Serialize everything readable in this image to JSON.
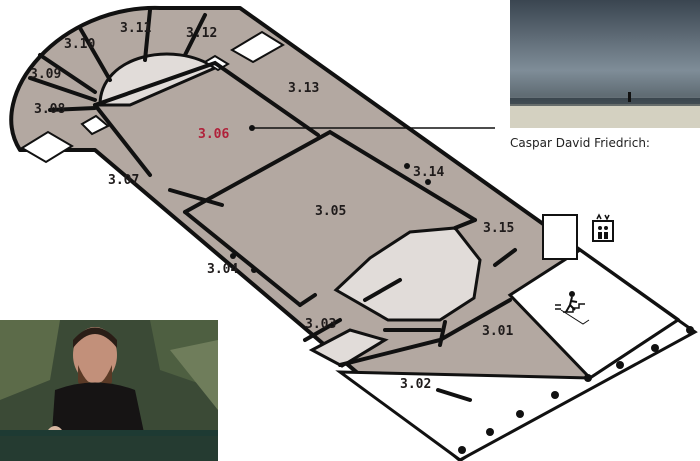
{
  "map": {
    "rooms": [
      {
        "id": "3.01",
        "label": "3.01"
      },
      {
        "id": "3.02",
        "label": "3.02"
      },
      {
        "id": "3.03",
        "label": "3.03"
      },
      {
        "id": "3.04",
        "label": "3.04"
      },
      {
        "id": "3.05",
        "label": "3.05"
      },
      {
        "id": "3.06",
        "label": "3.06",
        "highlighted": true
      },
      {
        "id": "3.07",
        "label": "3.07"
      },
      {
        "id": "3.08",
        "label": "3.08"
      },
      {
        "id": "3.09",
        "label": "3.09"
      },
      {
        "id": "3.10",
        "label": "3.10"
      },
      {
        "id": "3.11",
        "label": "3.11"
      },
      {
        "id": "3.12",
        "label": "3.12"
      },
      {
        "id": "3.13",
        "label": "3.13"
      },
      {
        "id": "3.14",
        "label": "3.14"
      },
      {
        "id": "3.15",
        "label": "3.15"
      }
    ],
    "icons": [
      "elevator-icon",
      "accessible-toilet-icon",
      "emergency-exit-stairs-icon"
    ],
    "colors": {
      "floor": "#b3a8a1",
      "room_fill": "#afa49d",
      "void": "#e1dcd9",
      "wall": "#111111",
      "highlight": "#b0213a"
    }
  },
  "callout": {
    "caption": "Caspar David Friedrich:"
  }
}
